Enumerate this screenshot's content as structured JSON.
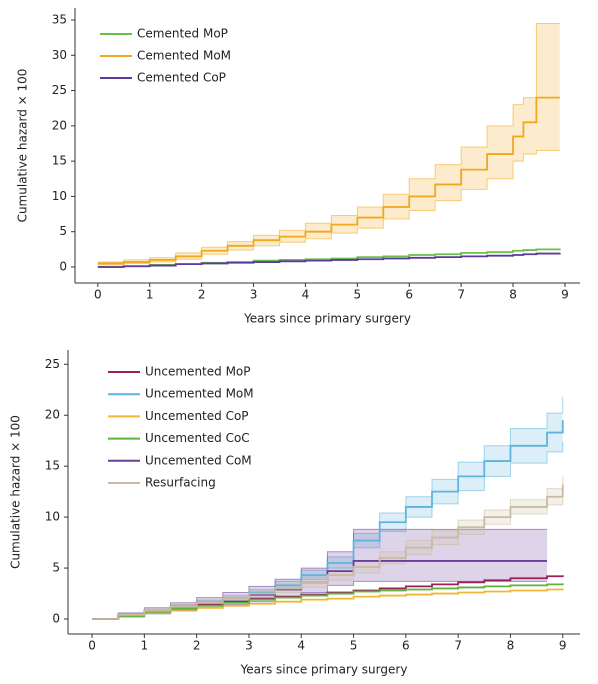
{
  "chart_data": [
    {
      "type": "line",
      "step": true,
      "x_label": "Years since primary surgery",
      "y_label": "Cumulative hazard × 100",
      "xlim": [
        -0.44,
        9.29
      ],
      "ylim": [
        -2.27,
        36.7
      ],
      "xticks": [
        0,
        1,
        2,
        3,
        4,
        5,
        6,
        7,
        8,
        9
      ],
      "yticks": [
        0,
        5,
        10,
        15,
        20,
        25,
        30,
        35
      ],
      "grid": false,
      "legend": "upper left",
      "x": [
        0,
        0.5,
        1,
        1.5,
        2,
        2.5,
        3,
        3.5,
        4,
        4.5,
        5,
        5.5,
        6,
        6.5,
        7,
        7.5,
        8,
        8.2,
        8.45,
        8.9
      ],
      "series": [
        {
          "name": "Cemented MoP",
          "color": "#6abf4b",
          "values": [
            0,
            0.1,
            0.3,
            0.4,
            0.6,
            0.7,
            0.9,
            1,
            1.1,
            1.2,
            1.4,
            1.5,
            1.7,
            1.8,
            2,
            2.1,
            2.3,
            2.4,
            2.5,
            2.6
          ]
        },
        {
          "name": "Cemented MoM",
          "color": "#f0a81c",
          "values": [
            0.5,
            0.7,
            1,
            1.5,
            2.3,
            3,
            3.8,
            4.3,
            5,
            6,
            7,
            8.5,
            10,
            11.7,
            13.8,
            16,
            18.5,
            20.5,
            24,
            24
          ],
          "lower": [
            0.3,
            0.5,
            0.7,
            1.1,
            1.8,
            2.4,
            3,
            3.5,
            4,
            4.8,
            5.5,
            6.8,
            8,
            9.4,
            11,
            12.5,
            15,
            16,
            16.5,
            16.5
          ],
          "upper": [
            0.7,
            1,
            1.3,
            2,
            2.8,
            3.6,
            4.5,
            5.2,
            6.2,
            7.3,
            8.5,
            10.3,
            12.5,
            14.5,
            17,
            20,
            23,
            24,
            34.5,
            34.5
          ]
        },
        {
          "name": "Cemented CoP",
          "color": "#5b3a9e",
          "values": [
            0,
            0.1,
            0.2,
            0.4,
            0.5,
            0.6,
            0.7,
            0.8,
            0.9,
            1,
            1.1,
            1.2,
            1.3,
            1.4,
            1.5,
            1.6,
            1.7,
            1.8,
            1.9,
            2
          ]
        }
      ]
    },
    {
      "type": "line",
      "step": true,
      "x_label": "Years since primary surgery",
      "y_label": "Cumulative hazard × 100",
      "xlim": [
        -0.46,
        9.33
      ],
      "ylim": [
        -1.47,
        26.4
      ],
      "xticks": [
        0,
        1,
        2,
        3,
        4,
        5,
        6,
        7,
        8,
        9
      ],
      "yticks": [
        0,
        5,
        10,
        15,
        20,
        25
      ],
      "grid": false,
      "legend": "upper left",
      "x": [
        0,
        0.5,
        1,
        1.5,
        2,
        2.5,
        3,
        3.5,
        4,
        4.5,
        5,
        5.5,
        6,
        6.5,
        7,
        7.5,
        8,
        8.7,
        9
      ],
      "series": [
        {
          "name": "Uncemented MoP",
          "color": "#9b1f5b",
          "values": [
            0,
            0.4,
            0.8,
            1.1,
            1.4,
            1.7,
            2,
            2.2,
            2.4,
            2.6,
            2.8,
            3,
            3.2,
            3.4,
            3.6,
            3.8,
            4,
            4.2,
            4.3
          ]
        },
        {
          "name": "Uncemented MoM",
          "color": "#5fb4de",
          "values": [
            0,
            0.4,
            0.8,
            1.2,
            1.6,
            2,
            2.6,
            3.3,
            4.3,
            5.5,
            7.7,
            9.5,
            11,
            12.5,
            14,
            15.5,
            17,
            18.3,
            19.5
          ],
          "lower": [
            0,
            0.3,
            0.7,
            1,
            1.4,
            1.8,
            2.3,
            3,
            3.9,
            5,
            7,
            8.6,
            10,
            11.3,
            12.6,
            14,
            15.3,
            16.4,
            17.4
          ],
          "upper": [
            0,
            0.5,
            0.9,
            1.4,
            1.8,
            2.3,
            2.9,
            3.7,
            4.8,
            6.1,
            8.4,
            10.4,
            12,
            13.7,
            15.4,
            17,
            18.7,
            20.2,
            21.8
          ]
        },
        {
          "name": "Uncemented CoP",
          "color": "#f2b632",
          "values": [
            0,
            0.3,
            0.6,
            0.9,
            1.1,
            1.3,
            1.5,
            1.7,
            1.9,
            2,
            2.2,
            2.3,
            2.4,
            2.5,
            2.6,
            2.7,
            2.8,
            2.9,
            3
          ]
        },
        {
          "name": "Uncemented CoC",
          "color": "#5cb43c",
          "values": [
            0,
            0.3,
            0.7,
            1,
            1.3,
            1.6,
            1.9,
            2.1,
            2.3,
            2.5,
            2.7,
            2.8,
            2.9,
            3,
            3.1,
            3.2,
            3.3,
            3.4,
            3.5
          ]
        },
        {
          "name": "Uncemented CoM",
          "color": "#6a3d9a",
          "values": [
            0,
            0.4,
            0.8,
            1.2,
            1.6,
            2,
            2.4,
            2.9,
            3.6,
            4.7,
            5.7,
            5.7,
            5.7,
            5.7,
            5.7,
            5.7,
            5.7,
            5.7,
            null
          ],
          "lower": [
            0,
            0.2,
            0.5,
            0.8,
            1.1,
            1.4,
            1.7,
            2.1,
            2.6,
            3.3,
            3.7,
            3.7,
            3.7,
            3.7,
            3.7,
            3.7,
            3.7,
            3.7,
            null
          ],
          "upper": [
            0,
            0.6,
            1.1,
            1.6,
            2.1,
            2.6,
            3.2,
            3.9,
            5,
            6.6,
            8.8,
            8.8,
            8.8,
            8.8,
            8.8,
            8.8,
            8.8,
            8.8,
            null
          ]
        },
        {
          "name": "Resurfacing",
          "color": "#c9bb9f",
          "values": [
            0,
            0.4,
            0.8,
            1.2,
            1.6,
            2,
            2.5,
            3,
            3.6,
            4.3,
            5.1,
            6,
            7,
            8,
            9,
            10,
            11,
            12,
            13.2
          ],
          "lower": [
            0,
            0.3,
            0.6,
            1,
            1.3,
            1.7,
            2.1,
            2.6,
            3.1,
            3.8,
            4.5,
            5.4,
            6.3,
            7.3,
            8.3,
            9.3,
            10.3,
            11.2,
            12.4
          ],
          "upper": [
            0,
            0.5,
            1,
            1.4,
            1.9,
            2.3,
            2.9,
            3.4,
            4.1,
            4.8,
            5.7,
            6.6,
            7.7,
            8.7,
            9.7,
            10.7,
            11.7,
            12.8,
            14
          ]
        }
      ]
    }
  ]
}
